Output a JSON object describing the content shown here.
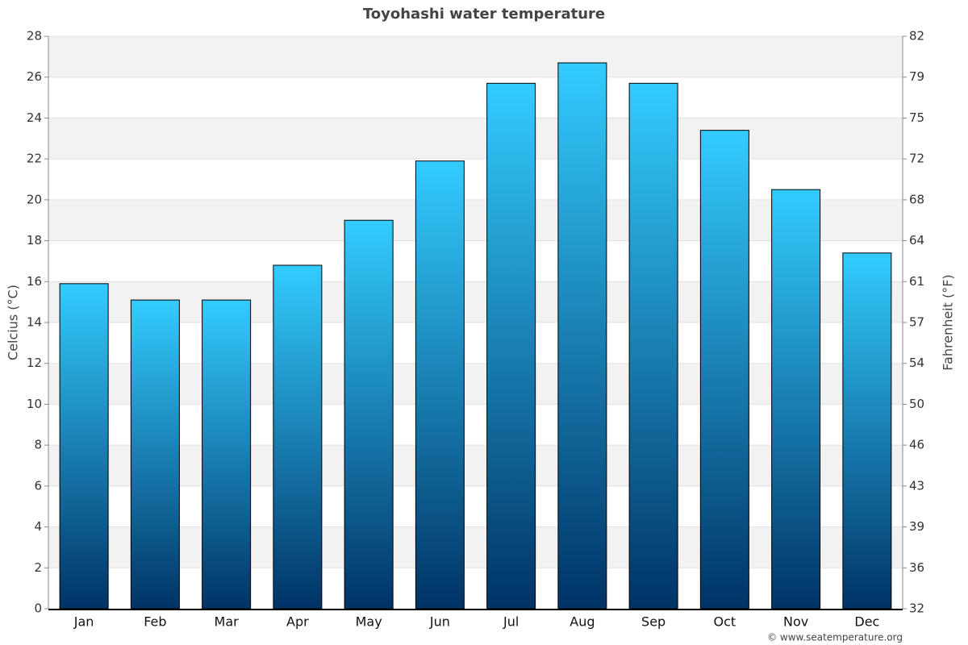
{
  "chart_data": {
    "type": "bar",
    "title": "Toyohashi water temperature",
    "y_label": "Celcius (°C)",
    "y2_label": "Fahrenheit (°F)",
    "credit": "© www.seatemperature.org",
    "categories": [
      "Jan",
      "Feb",
      "Mar",
      "Apr",
      "May",
      "Jun",
      "Jul",
      "Aug",
      "Sep",
      "Oct",
      "Nov",
      "Dec"
    ],
    "values": [
      15.9,
      15.1,
      15.1,
      16.8,
      19.0,
      21.9,
      25.7,
      26.7,
      25.7,
      23.4,
      20.5,
      17.4
    ],
    "color_top": "#33ccff",
    "color_bottom": "#003366",
    "ylim": [
      0,
      28
    ],
    "yticks": [
      0,
      2,
      4,
      6,
      8,
      10,
      12,
      14,
      16,
      18,
      20,
      22,
      24,
      26,
      28
    ],
    "y2lim": [
      32,
      82.4
    ],
    "y2ticks": [
      32,
      {
        "value": 35.6,
        "label": "36"
      },
      {
        "value": 39.2,
        "label": "39"
      },
      {
        "value": 42.8,
        "label": "43"
      },
      {
        "value": 46.4,
        "label": "46"
      },
      50,
      {
        "value": 53.6,
        "label": "54"
      },
      {
        "value": 57.2,
        "label": "57"
      },
      {
        "value": 60.8,
        "label": "61"
      },
      {
        "value": 64.4,
        "label": "64"
      },
      68,
      {
        "value": 71.6,
        "label": "72"
      },
      {
        "value": 75.2,
        "label": "75"
      },
      {
        "value": 78.8,
        "label": "79"
      },
      {
        "value": 82.4,
        "label": "82"
      }
    ],
    "grid": true
  }
}
